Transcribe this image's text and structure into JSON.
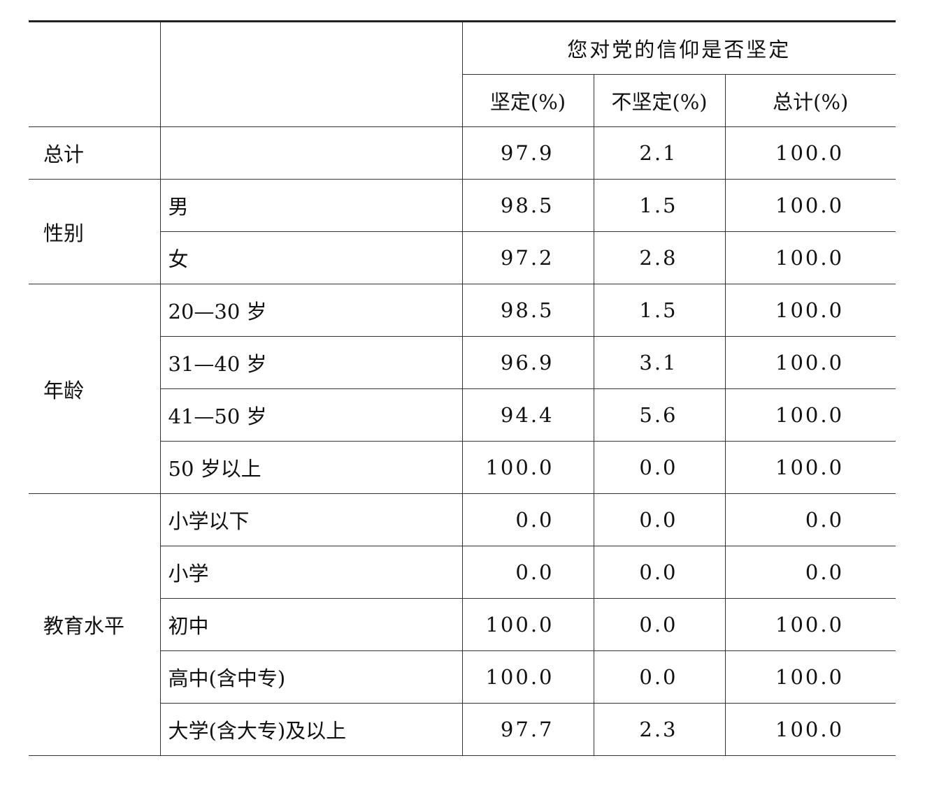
{
  "header": {
    "question": "您对党的信仰是否坚定",
    "columns": [
      "坚定(%)",
      "不坚定(%)",
      "总计(%)"
    ]
  },
  "total": {
    "label": "总计",
    "values": [
      "97.9",
      "2.1",
      "100.0"
    ]
  },
  "groups": [
    {
      "label": "性别",
      "rows": [
        {
          "label": "男",
          "values": [
            "98.5",
            "1.5",
            "100.0"
          ]
        },
        {
          "label": "女",
          "values": [
            "97.2",
            "2.8",
            "100.0"
          ]
        }
      ]
    },
    {
      "label": "年龄",
      "rows": [
        {
          "label": "20—30 岁",
          "values": [
            "98.5",
            "1.5",
            "100.0"
          ]
        },
        {
          "label": "31—40 岁",
          "values": [
            "96.9",
            "3.1",
            "100.0"
          ]
        },
        {
          "label": "41—50 岁",
          "values": [
            "94.4",
            "5.6",
            "100.0"
          ]
        },
        {
          "label": "50 岁以上",
          "values": [
            "100.0",
            "0.0",
            "100.0"
          ]
        }
      ]
    },
    {
      "label": "教育水平",
      "rows": [
        {
          "label": "小学以下",
          "values": [
            "0.0",
            "0.0",
            "0.0"
          ]
        },
        {
          "label": "小学",
          "values": [
            "0.0",
            "0.0",
            "0.0"
          ]
        },
        {
          "label": "初中",
          "values": [
            "100.0",
            "0.0",
            "100.0"
          ]
        },
        {
          "label": "高中(含中专)",
          "values": [
            "100.0",
            "0.0",
            "100.0"
          ]
        },
        {
          "label": "大学(含大专)及以上",
          "values": [
            "97.7",
            "2.3",
            "100.0"
          ]
        }
      ]
    }
  ]
}
